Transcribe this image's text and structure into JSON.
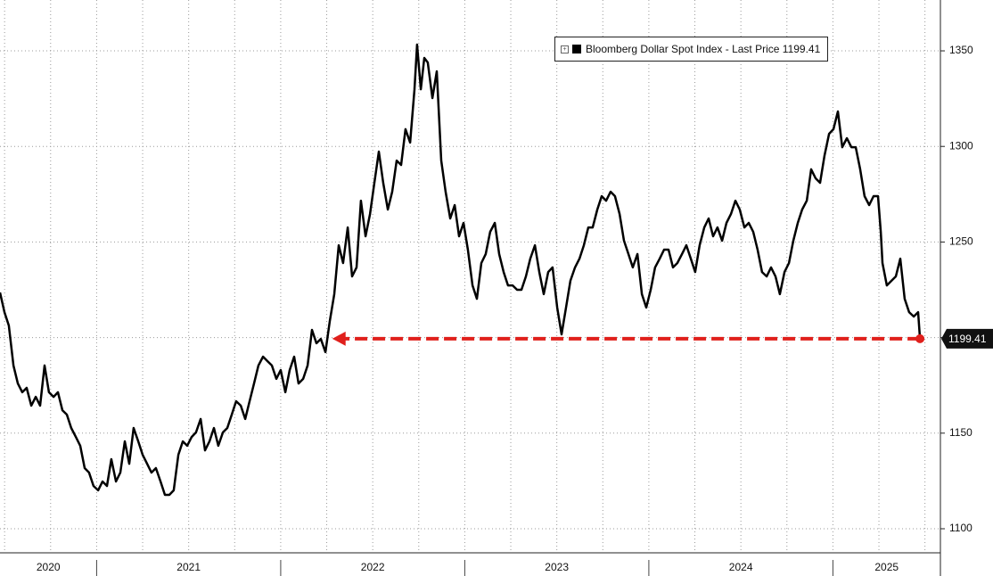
{
  "chart_data": {
    "type": "line",
    "xlim": [
      2020.475,
      2025.584
    ],
    "ylim": [
      1087.4,
      1376.6
    ],
    "xticks": [
      2020,
      2021,
      2022,
      2023,
      2024,
      2025
    ],
    "yticks": [
      1100,
      1150,
      1200,
      1250,
      1300,
      1350
    ],
    "xgrid": [
      2020.5,
      2020.75,
      2021,
      2021.25,
      2021.5,
      2021.75,
      2022,
      2022.25,
      2022.5,
      2022.75,
      2023,
      2023.25,
      2023.5,
      2023.75,
      2024,
      2024.25,
      2024.5,
      2024.75,
      2025,
      2025.25,
      2025.5
    ],
    "grid": true,
    "series": [
      {
        "name": "Bloomberg Dollar Spot Index - Last Price",
        "color": "#000000",
        "x": [
          2020.475,
          2020.499,
          2020.523,
          2020.548,
          2020.572,
          2020.596,
          2020.62,
          2020.645,
          2020.669,
          2020.693,
          2020.717,
          2020.741,
          2020.766,
          2020.79,
          2020.814,
          2020.838,
          2020.862,
          2020.887,
          2020.911,
          2020.935,
          2020.959,
          2020.983,
          2021.008,
          2021.032,
          2021.056,
          2021.08,
          2021.105,
          2021.129,
          2021.153,
          2021.177,
          2021.201,
          2021.226,
          2021.25,
          2021.274,
          2021.298,
          2021.322,
          2021.347,
          2021.371,
          2021.395,
          2021.419,
          2021.444,
          2021.468,
          2021.492,
          2021.516,
          2021.54,
          2021.565,
          2021.589,
          2021.613,
          2021.637,
          2021.661,
          2021.686,
          2021.71,
          2021.734,
          2021.758,
          2021.783,
          2021.807,
          2021.831,
          2021.855,
          2021.879,
          2021.904,
          2021.928,
          2021.952,
          2021.976,
          2022.0,
          2022.025,
          2022.049,
          2022.073,
          2022.097,
          2022.122,
          2022.146,
          2022.17,
          2022.194,
          2022.218,
          2022.243,
          2022.267,
          2022.291,
          2022.315,
          2022.339,
          2022.364,
          2022.388,
          2022.412,
          2022.436,
          2022.461,
          2022.485,
          2022.509,
          2022.533,
          2022.557,
          2022.582,
          2022.606,
          2022.63,
          2022.654,
          2022.678,
          2022.703,
          2022.727,
          2022.741,
          2022.761,
          2022.78,
          2022.799,
          2022.824,
          2022.848,
          2022.872,
          2022.896,
          2022.921,
          2022.945,
          2022.969,
          2022.993,
          2023.017,
          2023.042,
          2023.066,
          2023.09,
          2023.114,
          2023.138,
          2023.163,
          2023.187,
          2023.211,
          2023.235,
          2023.26,
          2023.284,
          2023.308,
          2023.332,
          2023.356,
          2023.381,
          2023.405,
          2023.429,
          2023.453,
          2023.477,
          2023.502,
          2023.526,
          2023.55,
          2023.574,
          2023.599,
          2023.623,
          2023.647,
          2023.671,
          2023.695,
          2023.72,
          2023.744,
          2023.768,
          2023.792,
          2023.816,
          2023.841,
          2023.865,
          2023.889,
          2023.913,
          2023.938,
          2023.962,
          2023.986,
          2024.01,
          2024.034,
          2024.059,
          2024.083,
          2024.107,
          2024.131,
          2024.155,
          2024.18,
          2024.204,
          2024.228,
          2024.252,
          2024.276,
          2024.301,
          2024.325,
          2024.349,
          2024.373,
          2024.398,
          2024.422,
          2024.446,
          2024.47,
          2024.494,
          2024.519,
          2024.543,
          2024.567,
          2024.591,
          2024.615,
          2024.64,
          2024.664,
          2024.688,
          2024.712,
          2024.737,
          2024.761,
          2024.785,
          2024.809,
          2024.833,
          2024.858,
          2024.882,
          2024.906,
          2024.93,
          2024.954,
          2024.979,
          2025.003,
          2025.027,
          2025.051,
          2025.076,
          2025.1,
          2025.124,
          2025.148,
          2025.172,
          2025.197,
          2025.221,
          2025.245,
          2025.26,
          2025.269,
          2025.293,
          2025.318,
          2025.342,
          2025.366,
          2025.39,
          2025.414,
          2025.439,
          2025.463,
          2025.473
        ],
        "values": [
          1223.6,
          1213.3,
          1206.3,
          1185.4,
          1176.0,
          1171.4,
          1173.7,
          1164.4,
          1169.0,
          1164.4,
          1185.4,
          1171.4,
          1169.0,
          1171.4,
          1162.0,
          1159.7,
          1152.7,
          1148.0,
          1143.4,
          1131.7,
          1129.4,
          1122.4,
          1120.1,
          1124.7,
          1122.4,
          1136.4,
          1124.7,
          1129.4,
          1145.7,
          1134.0,
          1152.7,
          1145.7,
          1138.7,
          1134.0,
          1129.4,
          1131.7,
          1124.7,
          1117.7,
          1117.7,
          1120.1,
          1138.7,
          1145.7,
          1143.4,
          1148.0,
          1150.4,
          1157.4,
          1141.0,
          1145.7,
          1152.7,
          1143.4,
          1150.4,
          1152.7,
          1159.7,
          1166.7,
          1164.4,
          1157.4,
          1166.7,
          1176.0,
          1185.4,
          1190.0,
          1187.7,
          1185.4,
          1178.4,
          1183.0,
          1171.4,
          1183.0,
          1190.0,
          1176.0,
          1178.4,
          1185.4,
          1204.0,
          1197.0,
          1199.3,
          1192.4,
          1208.7,
          1222.7,
          1248.3,
          1239.0,
          1257.6,
          1232.0,
          1236.7,
          1271.6,
          1253.0,
          1264.6,
          1281.0,
          1297.3,
          1281.0,
          1267.0,
          1276.3,
          1292.6,
          1290.3,
          1309.0,
          1302.0,
          1329.9,
          1353.3,
          1329.9,
          1346.3,
          1343.9,
          1325.3,
          1339.3,
          1292.6,
          1276.3,
          1262.3,
          1269.3,
          1253.0,
          1260.0,
          1246.0,
          1227.3,
          1220.3,
          1239.0,
          1243.7,
          1255.3,
          1260.0,
          1243.7,
          1234.3,
          1227.3,
          1227.3,
          1225.0,
          1225.0,
          1232.0,
          1241.3,
          1248.3,
          1234.3,
          1222.7,
          1234.3,
          1236.7,
          1215.7,
          1201.7,
          1215.7,
          1229.7,
          1236.7,
          1241.3,
          1248.3,
          1257.6,
          1257.6,
          1267.0,
          1274.0,
          1271.6,
          1276.3,
          1274.0,
          1264.6,
          1250.7,
          1243.7,
          1236.7,
          1243.7,
          1222.7,
          1215.7,
          1225.0,
          1236.7,
          1241.3,
          1246.0,
          1246.0,
          1236.7,
          1239.0,
          1243.7,
          1248.3,
          1241.3,
          1234.3,
          1248.3,
          1257.6,
          1262.3,
          1253.0,
          1257.6,
          1250.7,
          1260.0,
          1264.6,
          1271.6,
          1267.0,
          1257.6,
          1260.0,
          1255.3,
          1246.0,
          1234.3,
          1232.0,
          1236.7,
          1232.0,
          1222.7,
          1234.3,
          1239.0,
          1250.7,
          1260.0,
          1267.0,
          1271.6,
          1288.0,
          1283.3,
          1281.0,
          1295.0,
          1306.6,
          1309.0,
          1318.3,
          1299.6,
          1304.3,
          1299.6,
          1299.6,
          1288.0,
          1274.0,
          1269.3,
          1274.0,
          1274.0,
          1255.3,
          1239.0,
          1227.3,
          1229.7,
          1232.0,
          1241.3,
          1220.3,
          1213.3,
          1211.0,
          1213.3,
          1199.41
        ]
      }
    ],
    "arrow": {
      "from_x": 2025.473,
      "to_x": 2022.28,
      "y": 1199.41,
      "color": "#e0201c"
    }
  }
}
